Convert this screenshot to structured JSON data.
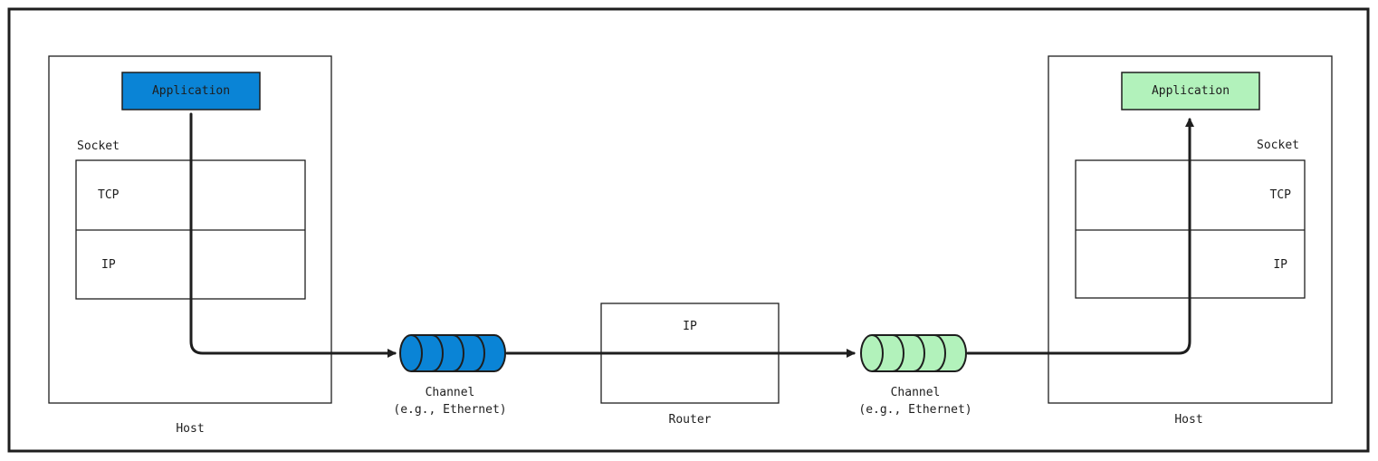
{
  "colors": {
    "sender_accent": "#0a84d6",
    "receiver_accent": "#b2f2bb",
    "stroke": "#1e1e1e",
    "background": "#ffffff"
  },
  "sender_host": {
    "label": "Host",
    "application": "Application",
    "socket": "Socket",
    "tcp": "TCP",
    "ip": "IP"
  },
  "sender_channel": {
    "line1": "Channel",
    "line2": "(e.g., Ethernet)"
  },
  "router": {
    "label": "Router",
    "ip": "IP"
  },
  "receiver_channel": {
    "line1": "Channel",
    "line2": "(e.g., Ethernet)"
  },
  "receiver_host": {
    "label": "Host",
    "application": "Application",
    "socket": "Socket",
    "tcp": "TCP",
    "ip": "IP"
  }
}
